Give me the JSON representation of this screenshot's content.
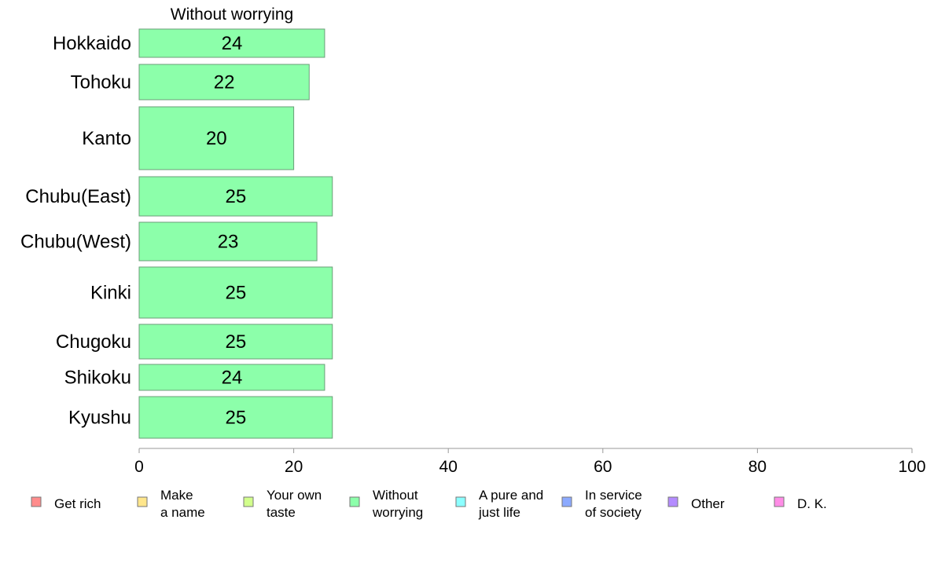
{
  "chart_data": {
    "type": "bar",
    "orientation": "horizontal",
    "title": "Without worrying",
    "categories": [
      "Hokkaido",
      "Tohoku",
      "Kanto",
      "Chubu(East)",
      "Chubu(West)",
      "Kinki",
      "Chugoku",
      "Shikoku",
      "Kyushu"
    ],
    "values": [
      24,
      22,
      20,
      25,
      23,
      25,
      25,
      24,
      25
    ],
    "data_labels": [
      "24",
      "22",
      "20",
      "25",
      "23",
      "25",
      "25",
      "24",
      "25"
    ],
    "xlim": [
      0,
      100
    ],
    "xticks": [
      "0",
      "20",
      "40",
      "60",
      "80",
      "100"
    ],
    "grid": false,
    "bar_color": "#8cffaa",
    "legend_position": "bottom",
    "legend": [
      {
        "lines": [
          "Get rich"
        ],
        "color": "#ff8c8c"
      },
      {
        "lines": [
          "Make",
          "a name"
        ],
        "color": "#ffe68c"
      },
      {
        "lines": [
          "Your own",
          "taste"
        ],
        "color": "#d2ff8c"
      },
      {
        "lines": [
          "Without",
          "worrying"
        ],
        "color": "#8cffaa"
      },
      {
        "lines": [
          "A pure and",
          "just life"
        ],
        "color": "#8cffff"
      },
      {
        "lines": [
          "In service",
          "of society"
        ],
        "color": "#8caaff"
      },
      {
        "lines": [
          "Other"
        ],
        "color": "#b48cff"
      },
      {
        "lines": [
          "D. K."
        ],
        "color": "#ff8ce6"
      }
    ]
  }
}
